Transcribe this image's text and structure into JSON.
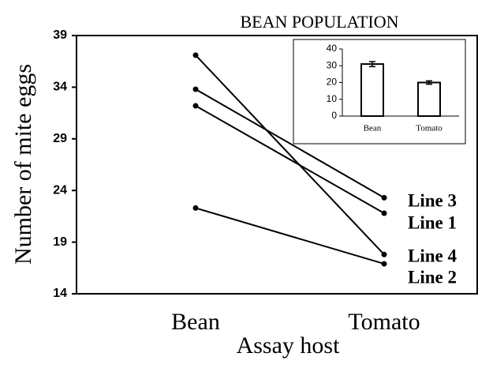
{
  "chart_data": [
    {
      "type": "line",
      "title": "BEAN POPULATION",
      "xlabel": "Assay host",
      "ylabel": "Number of mite eggs",
      "categories": [
        "Bean",
        "Tomato"
      ],
      "series": [
        {
          "name": "Line 3",
          "color": "#000000",
          "values": [
            33.8,
            23.3
          ]
        },
        {
          "name": "Line 1",
          "color": "#000000",
          "values": [
            32.2,
            21.8
          ]
        },
        {
          "name": "Line 4",
          "color": "#000000",
          "values": [
            37.1,
            17.8
          ]
        },
        {
          "name": "Line 2",
          "color": "#000000",
          "values": [
            22.3,
            16.9
          ]
        }
      ],
      "ylim": [
        14,
        39
      ],
      "yticks": [
        14,
        19,
        24,
        29,
        34,
        39
      ]
    },
    {
      "type": "bar",
      "categories": [
        "Bean",
        "Tomato"
      ],
      "values": [
        31,
        20
      ],
      "errors": [
        1.5,
        1
      ],
      "color": "#ffffff",
      "ylim": [
        0,
        40
      ],
      "yticks": [
        0,
        10,
        20,
        30,
        40
      ]
    }
  ]
}
